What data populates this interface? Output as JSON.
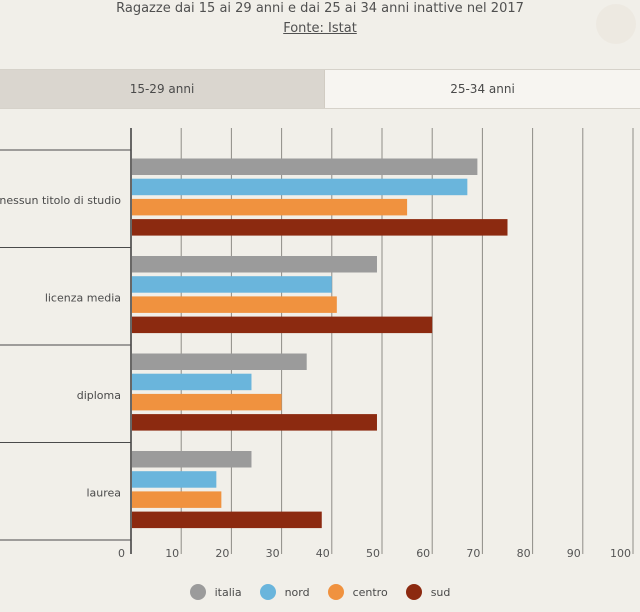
{
  "header": {
    "subtitle": "Ragazze dai 15 ai 29 anni e dai 25 ai 34 anni inattive nel 2017",
    "source": "Fonte: Istat"
  },
  "tabs": [
    {
      "label": "15-29 anni",
      "active": false
    },
    {
      "label": "25-34 anni",
      "active": true
    }
  ],
  "chart_data": {
    "type": "bar",
    "orientation": "horizontal",
    "categories": [
      "nessun titolo di studio",
      "licenza media",
      "diploma",
      "laurea"
    ],
    "series": [
      {
        "name": "italia",
        "color": "#9b9b9b",
        "values": [
          69,
          49,
          35,
          24
        ]
      },
      {
        "name": "nord",
        "color": "#6ab5dc",
        "values": [
          67,
          40,
          24,
          17
        ]
      },
      {
        "name": "centro",
        "color": "#f0923f",
        "values": [
          55,
          41,
          30,
          18
        ]
      },
      {
        "name": "sud",
        "color": "#8c2a10",
        "values": [
          75,
          60,
          49,
          38
        ]
      }
    ],
    "xlim": [
      0,
      100
    ],
    "xticks": [
      0,
      10,
      20,
      30,
      40,
      50,
      60,
      70,
      80,
      90,
      100
    ],
    "grid": true,
    "legend_position": "bottom-center"
  },
  "legend": [
    {
      "name": "italia",
      "color": "#9b9b9b"
    },
    {
      "name": "nord",
      "color": "#6ab5dc"
    },
    {
      "name": "centro",
      "color": "#f0923f"
    },
    {
      "name": "sud",
      "color": "#8c2a10"
    }
  ]
}
